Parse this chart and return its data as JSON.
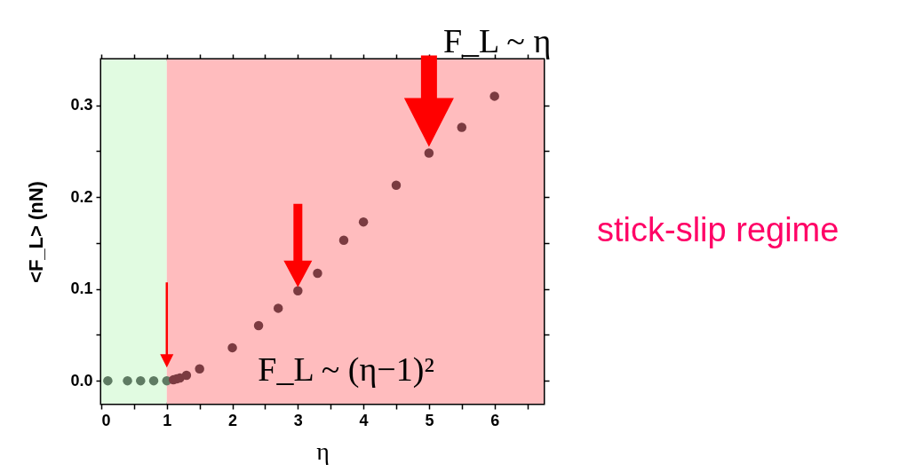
{
  "chart_data": {
    "type": "scatter",
    "xlabel": "η",
    "ylabel": "<F_L> (nN)",
    "annotations": [
      {
        "text": "F_L ~ η",
        "x": 5,
        "y": 0.248
      },
      {
        "text": "F_L ~ (η−1)²",
        "x": 3,
        "y": 0.098
      },
      "stick-slip regime"
    ],
    "series": [
      {
        "color": "#5f7b63",
        "x": [
          0.1,
          0.4,
          0.6,
          0.8,
          1.0
        ],
        "values": [
          0,
          0,
          0,
          0,
          0
        ]
      },
      {
        "color": "#7b3b41",
        "x": [
          1.1,
          1.15,
          1.2,
          1.3,
          1.5,
          2.0,
          2.4,
          2.7,
          3.0,
          3.3,
          3.7,
          4.0,
          4.5,
          5.0,
          5.5,
          6.0
        ],
        "values": [
          0.001,
          0.002,
          0.003,
          0.006,
          0.013,
          0.036,
          0.06,
          0.079,
          0.098,
          0.117,
          0.153,
          0.173,
          0.213,
          0.248,
          0.276,
          0.31
        ]
      }
    ],
    "bands": [
      {
        "axis": "x",
        "from": 0,
        "to": 1,
        "color": "#e1fbe1"
      },
      {
        "axis": "x",
        "from": 1,
        "to": 6.75,
        "color": "#ffbcbe"
      }
    ],
    "xlim": [
      0,
      6.75
    ],
    "ylim": [
      -0.025,
      0.35
    ],
    "xticks": [
      0,
      {
        "value": 0.5,
        "label": null
      },
      1,
      {
        "value": 1.5,
        "label": null
      },
      2,
      {
        "value": 2.5,
        "label": null
      },
      3,
      {
        "value": 3.5,
        "label": null
      },
      4,
      {
        "value": 4.5,
        "label": null
      },
      5,
      {
        "value": 5.5,
        "label": null
      },
      6,
      {
        "value": 6.5,
        "label": null
      }
    ],
    "yticks": [
      {
        "value": 0,
        "label": "0.0"
      },
      {
        "value": 0.05,
        "label": null
      },
      0.1,
      {
        "value": 0.15,
        "label": null
      },
      0.2,
      {
        "value": 0.25,
        "label": null
      },
      0.3
    ],
    "grid": false,
    "marker": "circle"
  }
}
